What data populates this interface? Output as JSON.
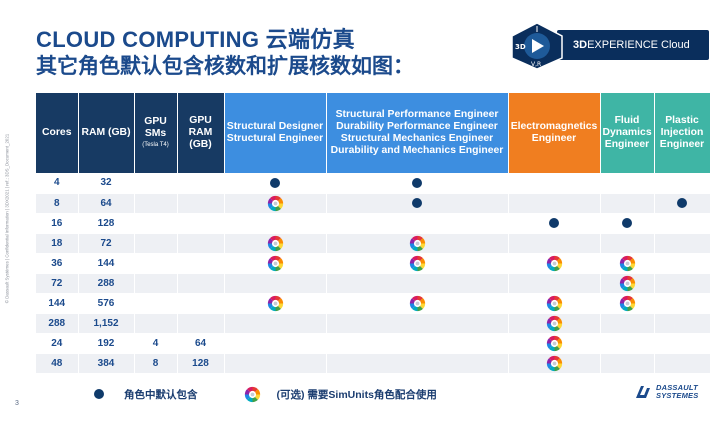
{
  "side_note": "© Dassault Systèmes | Confidential Information | 3DX2021 | ref.: 3DS_Document_2021",
  "title": {
    "line1": "CLOUD COMPUTING 云端仿真",
    "line2": "其它角色默认包含核数和扩展核数如图："
  },
  "brand": {
    "badge_text_left": "3D",
    "badge_text_bottom": "V,R",
    "product_bold": "3D",
    "product_rest": "EXPERIENCE Cloud"
  },
  "table": {
    "headers": [
      {
        "label": "Cores",
        "sub": "",
        "style": "dark"
      },
      {
        "label": "RAM (GB)",
        "sub": "",
        "style": "dark"
      },
      {
        "label": "GPU SMs",
        "sub": "(Tesla T4)",
        "style": "dark"
      },
      {
        "label": "GPU RAM (GB)",
        "sub": "",
        "style": "dark"
      },
      {
        "label": "Structural Designer Structural Engineer",
        "sub": "",
        "style": "blue"
      },
      {
        "label": "Structural Performance Engineer Durability Performance Engineer Structural Mechanics Engineer Durability and Mechanics Engineer",
        "sub": "",
        "style": "blue"
      },
      {
        "label": "Electromagnetics Engineer",
        "sub": "",
        "style": "orange"
      },
      {
        "label": "Fluid Dynamics Engineer",
        "sub": "",
        "style": "teal"
      },
      {
        "label": "Plastic Injection Engineer",
        "sub": "",
        "style": "teal"
      }
    ],
    "rows": [
      {
        "cores": "4",
        "ram": "32",
        "gpu_sms": "",
        "gpu_ram": "",
        "marks": [
          "dot",
          "dot",
          "",
          "",
          ""
        ]
      },
      {
        "cores": "8",
        "ram": "64",
        "gpu_sms": "",
        "gpu_ram": "",
        "marks": [
          "wheel",
          "dot",
          "",
          "",
          "dot"
        ]
      },
      {
        "cores": "16",
        "ram": "128",
        "gpu_sms": "",
        "gpu_ram": "",
        "marks": [
          "",
          "",
          "dot",
          "dot",
          ""
        ]
      },
      {
        "cores": "18",
        "ram": "72",
        "gpu_sms": "",
        "gpu_ram": "",
        "marks": [
          "wheel",
          "wheel",
          "",
          "",
          ""
        ]
      },
      {
        "cores": "36",
        "ram": "144",
        "gpu_sms": "",
        "gpu_ram": "",
        "marks": [
          "wheel",
          "wheel",
          "wheel",
          "wheel",
          ""
        ]
      },
      {
        "cores": "72",
        "ram": "288",
        "gpu_sms": "",
        "gpu_ram": "",
        "marks": [
          "",
          "",
          "",
          "wheel",
          ""
        ]
      },
      {
        "cores": "144",
        "ram": "576",
        "gpu_sms": "",
        "gpu_ram": "",
        "marks": [
          "wheel",
          "wheel",
          "wheel",
          "wheel",
          ""
        ]
      },
      {
        "cores": "288",
        "ram": "1,152",
        "gpu_sms": "",
        "gpu_ram": "",
        "marks": [
          "",
          "",
          "wheel",
          "",
          ""
        ]
      },
      {
        "cores": "24",
        "ram": "192",
        "gpu_sms": "4",
        "gpu_ram": "64",
        "marks": [
          "",
          "",
          "wheel",
          "",
          ""
        ]
      },
      {
        "cores": "48",
        "ram": "384",
        "gpu_sms": "8",
        "gpu_ram": "128",
        "marks": [
          "",
          "",
          "wheel",
          "",
          ""
        ]
      }
    ]
  },
  "legend": {
    "dot_label": "角色中默认包含",
    "wheel_label": "(可选) 需要SimUnits角色配合使用"
  },
  "page_number": "3",
  "logo": {
    "line1": "DASSAULT",
    "line2": "SYSTEMES"
  },
  "colors": {
    "header_dark": "#173a63",
    "header_blue": "#3d8ee0",
    "header_orange": "#f07e20",
    "header_teal": "#3fb5a5",
    "text_blue": "#1b4a8c",
    "dot": "#0f3a6a",
    "brand_bar": "#0a2e5c"
  },
  "icons": {
    "included": "filled-dot-icon",
    "optional": "simunits-color-wheel-icon"
  }
}
